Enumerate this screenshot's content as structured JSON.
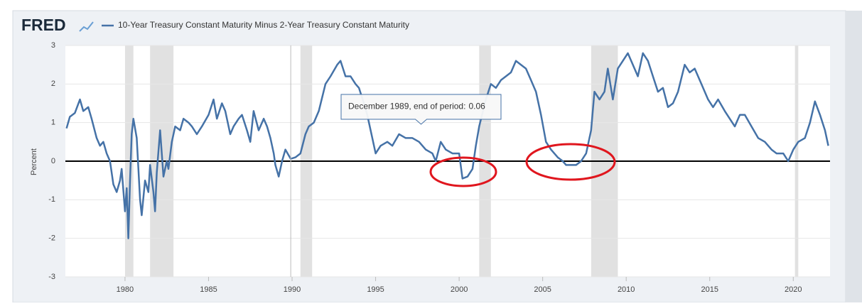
{
  "chart_data": {
    "type": "line",
    "brand": "FRED",
    "y_label": "Percent",
    "xlim": [
      1976.43,
      2022.2
    ],
    "ylim": [
      -3,
      3
    ],
    "xticks": [
      1980,
      1985,
      1990,
      1995,
      2000,
      2005,
      2010,
      2015,
      2020
    ],
    "yticks": [
      -3,
      -2,
      -1,
      0,
      1,
      2,
      3
    ],
    "grid": true,
    "recessions": [
      [
        1980.0,
        1980.5
      ],
      [
        1981.5,
        1982.9
      ],
      [
        1990.5,
        1991.2
      ],
      [
        2001.2,
        2001.9
      ],
      [
        2007.9,
        2009.5
      ],
      [
        2020.1,
        2020.3
      ]
    ],
    "tooltip": {
      "label": "December 1989, end of period:",
      "x": 1989.92,
      "value": 0.06
    },
    "x": [
      1976.5,
      1976.7,
      1977.0,
      1977.3,
      1977.5,
      1977.8,
      1978.0,
      1978.3,
      1978.5,
      1978.7,
      1978.9,
      1979.1,
      1979.3,
      1979.5,
      1979.7,
      1979.8,
      1980.0,
      1980.1,
      1980.2,
      1980.3,
      1980.4,
      1980.5,
      1980.7,
      1980.9,
      1981.0,
      1981.2,
      1981.4,
      1981.5,
      1981.7,
      1981.8,
      1981.9,
      1982.1,
      1982.3,
      1982.5,
      1982.6,
      1982.8,
      1983.0,
      1983.3,
      1983.5,
      1983.8,
      1984.0,
      1984.3,
      1984.6,
      1985.0,
      1985.3,
      1985.5,
      1985.8,
      1986.0,
      1986.3,
      1986.5,
      1986.8,
      1987.0,
      1987.3,
      1987.5,
      1987.7,
      1988.0,
      1988.3,
      1988.5,
      1988.7,
      1988.9,
      1989.0,
      1989.2,
      1989.4,
      1989.6,
      1989.92,
      1990.2,
      1990.5,
      1990.8,
      1991.0,
      1991.3,
      1991.6,
      1992.0,
      1992.3,
      1992.7,
      1992.9,
      1993.2,
      1993.5,
      1993.8,
      1994.0,
      1994.3,
      1994.5,
      1994.8,
      1995.0,
      1995.3,
      1995.7,
      1996.0,
      1996.4,
      1996.8,
      1997.2,
      1997.6,
      1998.0,
      1998.4,
      1998.6,
      1998.9,
      1999.2,
      1999.6,
      2000.0,
      2000.2,
      2000.5,
      2000.8,
      2001.0,
      2001.2,
      2001.6,
      2001.9,
      2002.2,
      2002.5,
      2002.8,
      2003.1,
      2003.4,
      2003.7,
      2004.0,
      2004.3,
      2004.6,
      2004.9,
      2005.2,
      2005.5,
      2005.9,
      2006.2,
      2006.4,
      2006.7,
      2007.0,
      2007.3,
      2007.6,
      2007.9,
      2008.1,
      2008.4,
      2008.7,
      2008.9,
      2009.2,
      2009.5,
      2009.8,
      2010.1,
      2010.4,
      2010.7,
      2011.0,
      2011.3,
      2011.6,
      2011.9,
      2012.2,
      2012.5,
      2012.8,
      2013.1,
      2013.5,
      2013.8,
      2014.1,
      2014.5,
      2014.9,
      2015.2,
      2015.5,
      2015.9,
      2016.2,
      2016.5,
      2016.8,
      2017.1,
      2017.5,
      2017.9,
      2018.3,
      2018.7,
      2019.0,
      2019.4,
      2019.7,
      2020.0,
      2020.3,
      2020.7,
      2021.0,
      2021.3,
      2021.6,
      2021.9,
      2022.1
    ],
    "series": [
      {
        "name": "10-Year Treasury Constant Maturity Minus 2-Year Treasury Constant Maturity",
        "color": "#4572a7",
        "values": [
          0.85,
          1.15,
          1.25,
          1.6,
          1.3,
          1.4,
          1.1,
          0.6,
          0.4,
          0.5,
          0.2,
          0.0,
          -0.6,
          -0.8,
          -0.5,
          -0.2,
          -1.3,
          -0.7,
          -2.0,
          -0.5,
          0.7,
          1.1,
          0.6,
          -1.0,
          -1.4,
          -0.5,
          -0.8,
          -0.1,
          -0.8,
          -1.3,
          -0.3,
          0.8,
          -0.4,
          0.0,
          -0.2,
          0.5,
          0.9,
          0.8,
          1.1,
          1.0,
          0.9,
          0.7,
          0.9,
          1.2,
          1.6,
          1.1,
          1.5,
          1.3,
          0.7,
          0.9,
          1.1,
          1.2,
          0.8,
          0.5,
          1.3,
          0.8,
          1.1,
          0.9,
          0.6,
          0.2,
          -0.1,
          -0.4,
          0.0,
          0.3,
          0.06,
          0.1,
          0.2,
          0.7,
          0.9,
          1.0,
          1.3,
          2.0,
          2.2,
          2.5,
          2.6,
          2.2,
          2.2,
          2.0,
          1.9,
          1.5,
          1.2,
          0.6,
          0.2,
          0.4,
          0.5,
          0.4,
          0.7,
          0.6,
          0.6,
          0.5,
          0.3,
          0.2,
          0.0,
          0.5,
          0.3,
          0.2,
          0.2,
          -0.45,
          -0.4,
          -0.2,
          0.4,
          0.9,
          1.6,
          2.0,
          1.9,
          2.1,
          2.2,
          2.3,
          2.6,
          2.5,
          2.4,
          2.1,
          1.8,
          1.2,
          0.5,
          0.3,
          0.1,
          0.0,
          -0.1,
          -0.1,
          -0.1,
          0.0,
          0.2,
          0.8,
          1.8,
          1.6,
          1.8,
          2.4,
          1.6,
          2.4,
          2.6,
          2.8,
          2.5,
          2.2,
          2.8,
          2.6,
          2.2,
          1.8,
          1.9,
          1.4,
          1.5,
          1.8,
          2.5,
          2.3,
          2.4,
          2.0,
          1.6,
          1.4,
          1.6,
          1.3,
          1.1,
          0.9,
          1.2,
          1.2,
          0.9,
          0.6,
          0.5,
          0.3,
          0.2,
          0.2,
          0.0,
          0.3,
          0.5,
          0.6,
          1.0,
          1.55,
          1.2,
          0.8,
          0.4
        ]
      }
    ]
  }
}
